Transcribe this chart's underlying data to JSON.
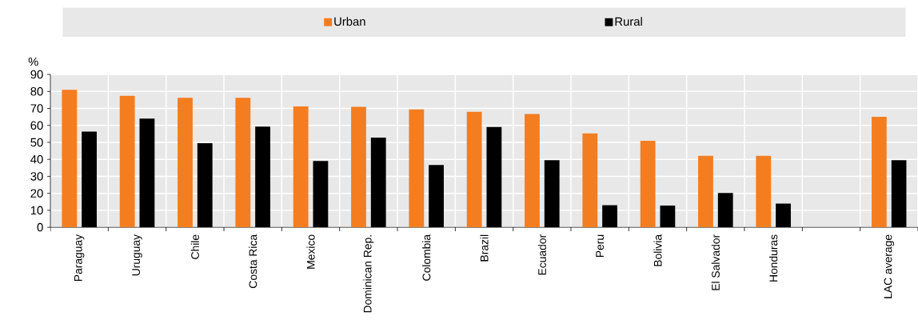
{
  "chart_data": {
    "type": "bar",
    "ylabel": "%",
    "categories": [
      "Paraguay",
      "Uruguay",
      "Chile",
      "Costa Rica",
      "Mexico",
      "Dominican Rep.",
      "Colombia",
      "Brazil",
      "Ecuador",
      "Peru",
      "Bolivia",
      "El Salvador",
      "Honduras",
      null,
      "LAC average"
    ],
    "series": [
      {
        "name": "Urban",
        "color": "#f47d20",
        "values": [
          81,
          77.4,
          76.2,
          76.2,
          71.2,
          71,
          69.4,
          68,
          66.7,
          55.3,
          50.9,
          42.1,
          42.1,
          null,
          65.1
        ]
      },
      {
        "name": "Rural",
        "color": "#000000",
        "values": [
          56.3,
          64,
          49.5,
          59.3,
          39,
          52.8,
          36.7,
          59,
          39.5,
          13,
          12.8,
          20.2,
          14,
          null,
          39.5
        ]
      }
    ],
    "ylim": [
      0,
      90
    ],
    "yticks": [
      0,
      10,
      20,
      30,
      40,
      50,
      60,
      70,
      80,
      90
    ],
    "grid": true,
    "legend": "top"
  }
}
